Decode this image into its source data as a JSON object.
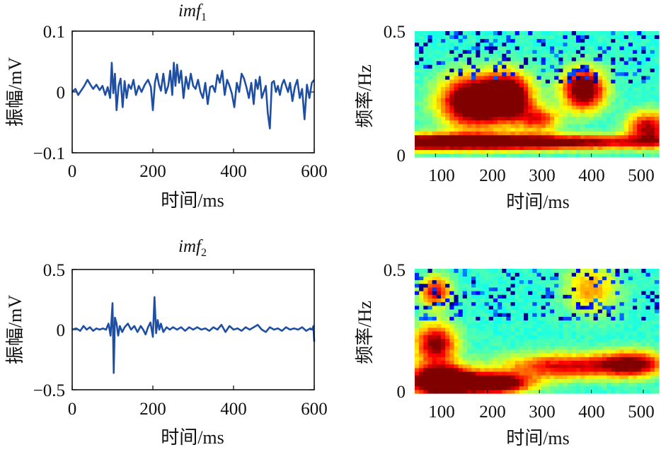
{
  "chart_data": [
    {
      "type": "line",
      "title": "imf",
      "title_sub": "1",
      "xlabel": "时间/ms",
      "ylabel": "振幅/mV",
      "xlim": [
        0,
        600
      ],
      "ylim": [
        -0.1,
        0.1
      ],
      "xticks": [
        "0",
        "200",
        "400",
        "600"
      ],
      "yticks": [
        "0.1",
        "0",
        "−0.1"
      ],
      "color": "#1f4fa3",
      "series": [
        {
          "x": [
            0,
            8,
            15,
            22,
            30,
            38,
            45,
            52,
            60,
            68,
            75,
            82,
            88,
            94,
            98,
            102,
            106,
            110,
            115,
            120,
            125,
            130,
            135,
            140,
            146,
            152,
            158,
            165,
            172,
            180,
            188,
            195,
            200,
            205,
            210,
            215,
            220,
            226,
            232,
            238,
            243,
            248,
            252,
            256,
            260,
            265,
            270,
            276,
            282,
            288,
            294,
            300,
            306,
            312,
            318,
            324,
            330,
            336,
            342,
            348,
            354,
            360,
            366,
            372,
            378,
            384,
            390,
            396,
            402,
            408,
            414,
            420,
            426,
            432,
            438,
            444,
            450,
            455,
            460,
            465,
            470,
            475,
            480,
            485,
            490,
            495,
            500,
            505,
            510,
            515,
            520,
            525,
            530,
            535,
            540,
            546,
            552,
            558,
            564,
            570,
            576,
            582,
            588,
            594,
            600
          ],
          "y": [
            0.0,
            0.005,
            -0.005,
            0.002,
            0.01,
            0.02,
            0.012,
            0.005,
            0.012,
            0.003,
            0.01,
            -0.005,
            0.008,
            -0.01,
            0.048,
            -0.002,
            0.03,
            -0.03,
            0.01,
            0.022,
            -0.025,
            0.018,
            -0.01,
            0.012,
            0.005,
            0.02,
            -0.005,
            0.01,
            0.0,
            0.012,
            0.02,
            0.008,
            -0.03,
            0.015,
            0.03,
            0.012,
            0.002,
            0.03,
            -0.002,
            0.01,
            0.035,
            -0.005,
            0.048,
            0.01,
            0.045,
            0.015,
            0.035,
            -0.01,
            0.025,
            0.005,
            0.03,
            0.01,
            0.005,
            0.02,
            0.0,
            -0.01,
            0.015,
            -0.02,
            0.008,
            0.01,
            0.0,
            0.028,
            0.015,
            0.035,
            -0.005,
            0.02,
            0.01,
            -0.003,
            -0.025,
            0.015,
            0.0,
            0.03,
            0.022,
            0.008,
            -0.01,
            0.015,
            -0.02,
            0.02,
            0.005,
            0.025,
            -0.01,
            0.0,
            0.01,
            -0.035,
            -0.06,
            0.015,
            0.018,
            0.0,
            0.01,
            -0.005,
            0.012,
            0.02,
            0.01,
            0.0,
            0.015,
            -0.015,
            0.008,
            0.02,
            -0.01,
            0.005,
            -0.045,
            0.012,
            -0.01,
            0.015,
            0.02
          ]
        }
      ]
    },
    {
      "type": "line",
      "title": "imf",
      "title_sub": "2",
      "xlabel": "时间/ms",
      "ylabel": "振幅/mV",
      "xlim": [
        0,
        600
      ],
      "ylim": [
        -0.5,
        0.5
      ],
      "xticks": [
        "0",
        "200",
        "400",
        "600"
      ],
      "yticks": [
        "0.5",
        "0",
        "−0.5"
      ],
      "color": "#1f4fa3",
      "series": [
        {
          "x": [
            0,
            10,
            20,
            28,
            36,
            44,
            52,
            60,
            68,
            76,
            84,
            90,
            95,
            100,
            103,
            106,
            110,
            114,
            118,
            124,
            130,
            138,
            146,
            154,
            162,
            170,
            176,
            182,
            188,
            194,
            200,
            204,
            208,
            212,
            216,
            220,
            226,
            234,
            242,
            250,
            260,
            270,
            280,
            290,
            300,
            310,
            320,
            330,
            340,
            350,
            360,
            370,
            380,
            390,
            400,
            410,
            420,
            430,
            440,
            450,
            460,
            470,
            480,
            490,
            500,
            510,
            520,
            530,
            540,
            550,
            560,
            570,
            580,
            590,
            595,
            598,
            600
          ],
          "y": [
            0.0,
            0.01,
            -0.01,
            0.03,
            0.0,
            0.02,
            -0.01,
            0.01,
            0.0,
            0.01,
            0.0,
            0.05,
            -0.05,
            0.22,
            -0.36,
            0.1,
            0.05,
            -0.05,
            0.03,
            -0.02,
            0.02,
            0.05,
            0.0,
            0.03,
            -0.02,
            0.03,
            0.0,
            -0.04,
            0.02,
            0.06,
            -0.06,
            0.27,
            -0.03,
            0.08,
            0.0,
            0.05,
            -0.02,
            0.02,
            0.0,
            0.02,
            0.0,
            0.02,
            -0.01,
            0.02,
            0.0,
            0.02,
            0.0,
            0.01,
            -0.01,
            0.02,
            0.0,
            0.04,
            -0.02,
            0.03,
            0.0,
            0.01,
            -0.01,
            0.02,
            0.0,
            0.02,
            0.04,
            0.0,
            -0.02,
            0.02,
            0.0,
            0.01,
            -0.01,
            0.02,
            0.0,
            0.01,
            0.0,
            0.02,
            -0.01,
            0.01,
            0.0,
            0.03,
            -0.1
          ]
        }
      ]
    },
    {
      "type": "heatmap",
      "xlabel": "时间/ms",
      "ylabel": "频率/Hz",
      "xlim": [
        60,
        530
      ],
      "ylim": [
        0,
        0.5
      ],
      "xticks": [
        100,
        200,
        300,
        400,
        500
      ],
      "yticks": [
        0,
        0.5
      ],
      "colormap": "jet",
      "blobs": [
        {
          "x": 130,
          "y": 0.06,
          "sx": 400,
          "sy": 0.03,
          "v": 0.9
        },
        {
          "x": 170,
          "y": 0.22,
          "sx": 60,
          "sy": 0.1,
          "v": 0.8
        },
        {
          "x": 240,
          "y": 0.24,
          "sx": 45,
          "sy": 0.09,
          "v": 0.8
        },
        {
          "x": 385,
          "y": 0.27,
          "sx": 40,
          "sy": 0.08,
          "v": 0.75
        },
        {
          "x": 510,
          "y": 0.12,
          "sx": 40,
          "sy": 0.06,
          "v": 0.55
        },
        {
          "x": 300,
          "y": 0.15,
          "sx": 40,
          "sy": 0.05,
          "v": 0.4
        }
      ]
    },
    {
      "type": "heatmap",
      "xlabel": "时间/ms",
      "ylabel": "频率/Hz",
      "xlim": [
        60,
        530
      ],
      "ylim": [
        0,
        0.5
      ],
      "xticks": [
        100,
        200,
        300,
        400,
        500
      ],
      "yticks": [
        0,
        0.5
      ],
      "colormap": "jet",
      "blobs": [
        {
          "x": 110,
          "y": 0.05,
          "sx": 60,
          "sy": 0.06,
          "v": 1.0
        },
        {
          "x": 210,
          "y": 0.04,
          "sx": 70,
          "sy": 0.04,
          "v": 0.85
        },
        {
          "x": 100,
          "y": 0.2,
          "sx": 40,
          "sy": 0.08,
          "v": 0.6
        },
        {
          "x": 100,
          "y": 0.41,
          "sx": 30,
          "sy": 0.06,
          "v": 0.5
        },
        {
          "x": 350,
          "y": 0.11,
          "sx": 120,
          "sy": 0.05,
          "v": 0.5
        },
        {
          "x": 480,
          "y": 0.12,
          "sx": 60,
          "sy": 0.05,
          "v": 0.55
        },
        {
          "x": 400,
          "y": 0.42,
          "sx": 50,
          "sy": 0.1,
          "v": 0.3
        }
      ]
    }
  ]
}
